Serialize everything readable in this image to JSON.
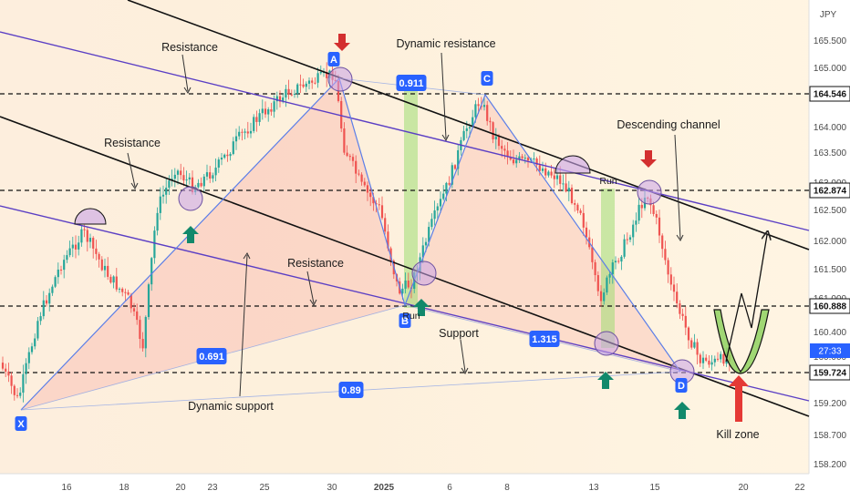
{
  "chart_data": {
    "type": "candlestick",
    "symbol_currency": "JPY",
    "x_tick_labels": [
      "16",
      "18",
      "20",
      "23",
      "25",
      "30",
      "2025",
      "6",
      "8",
      "13",
      "15",
      "20",
      "22"
    ],
    "y_tick_labels": [
      "165.500",
      "165.000",
      "164.500",
      "164.000",
      "163.500",
      "163.000",
      "162.500",
      "162.000",
      "161.500",
      "161.000",
      "160.400",
      "160.000",
      "159.200",
      "158.700",
      "158.200"
    ],
    "ylim": [
      158.0,
      166.0
    ],
    "price_levels": [
      {
        "label": "164.546",
        "value": 164.546
      },
      {
        "label": "162.874",
        "value": 162.874
      },
      {
        "label": "160.888",
        "value": 160.888
      },
      {
        "label": "159.724",
        "value": 159.724
      }
    ],
    "current_price_tag": {
      "value": "27:33",
      "color": "#2962ff"
    },
    "harmonic_points": [
      {
        "label": "X",
        "price": 159.1
      },
      {
        "label": "A",
        "price": 165.0
      },
      {
        "label": "B",
        "price": 160.9
      },
      {
        "label": "C",
        "price": 164.55
      },
      {
        "label": "D",
        "price": 159.72
      }
    ],
    "ratios": [
      "0.911",
      "0.691",
      "1.315",
      "0.89"
    ],
    "annotations": [
      "Resistance",
      "Resistance",
      "Resistance",
      "Dynamic resistance",
      "Descending channel",
      "Support",
      "Dynamic support",
      "Kill zone",
      "Run",
      "Run"
    ],
    "colors": {
      "up_candle": "#26a69a",
      "down_candle": "#ef5350",
      "channel_line": "#111111",
      "purple_line": "#5b3fc4",
      "pattern_line": "#5b7ee8",
      "point_badge": "#2962ff",
      "arrow_up": "#12896b",
      "arrow_down": "#d32f2f",
      "kill_zone_fill": "#8fd160"
    }
  }
}
